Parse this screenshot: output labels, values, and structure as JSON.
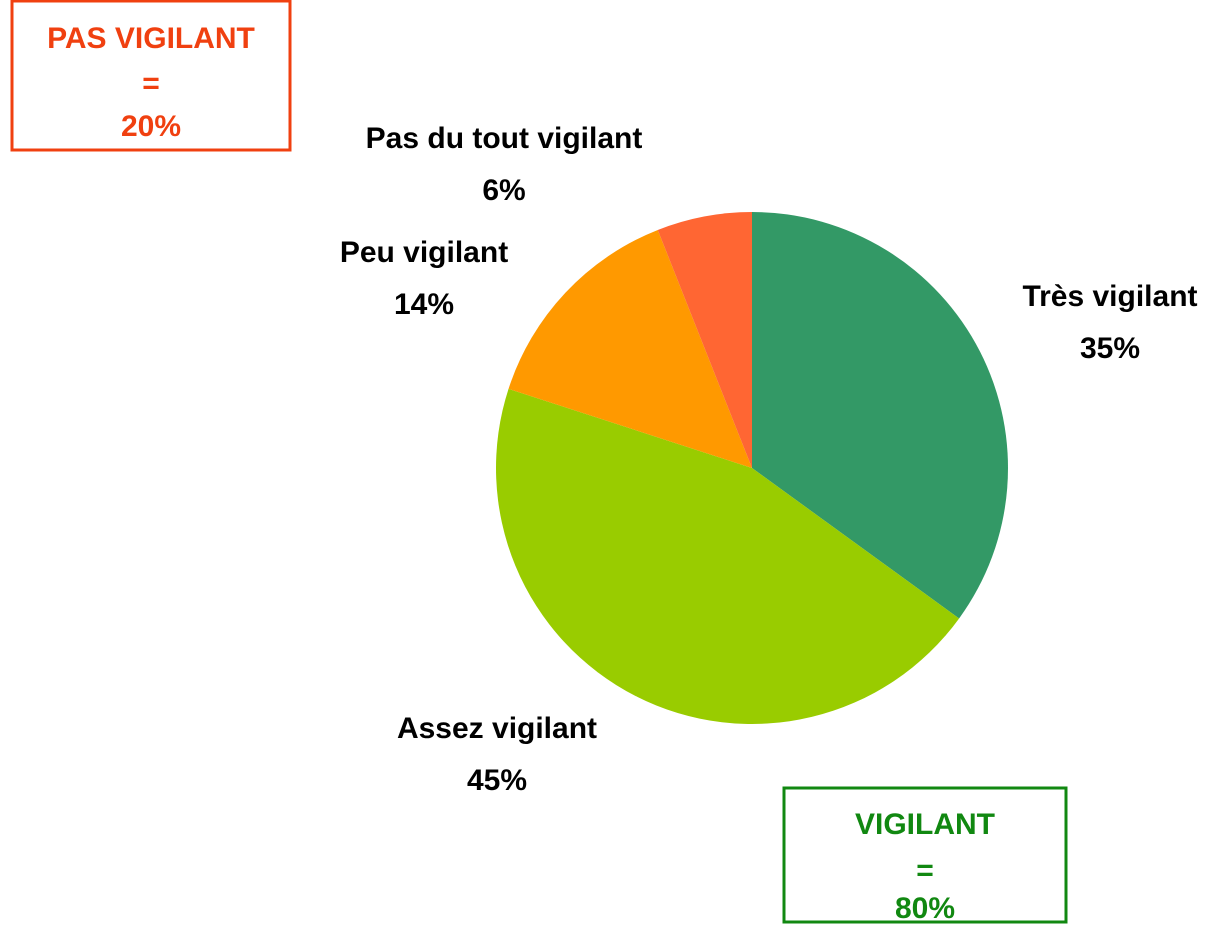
{
  "chart_data": {
    "type": "pie",
    "categories": [
      "Très vigilant",
      "Assez vigilant",
      "Peu vigilant",
      "Pas du tout vigilant"
    ],
    "values": [
      35,
      45,
      14,
      6
    ],
    "value_labels": [
      "35%",
      "45%",
      "14%",
      "6%"
    ],
    "colors": [
      "#339966",
      "#99cc00",
      "#ff9900",
      "#ff6633"
    ],
    "annotations": [
      {
        "lines": [
          "PAS VIGILANT",
          "=",
          "20%"
        ],
        "color": "#f04010"
      },
      {
        "lines": [
          "VIGILANT",
          "=",
          "80%"
        ],
        "color": "#118811"
      }
    ]
  }
}
